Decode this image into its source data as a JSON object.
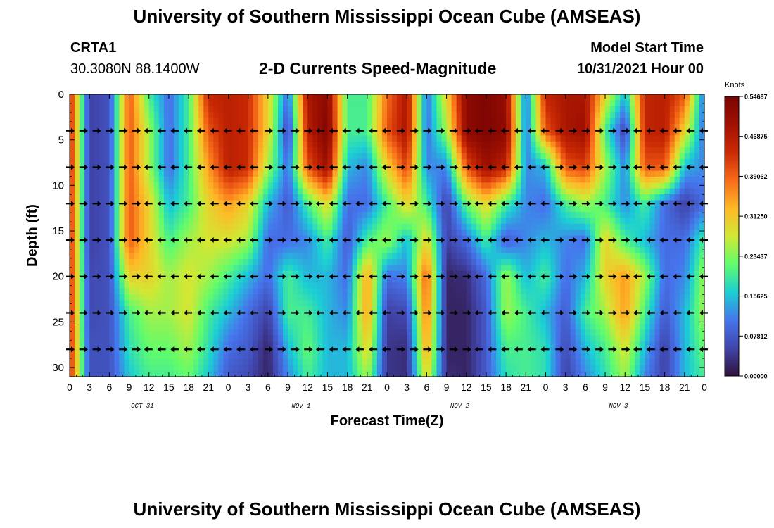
{
  "title": "University of Southern Mississippi Ocean Cube (AMSEAS)",
  "title_repeat": "University of Southern Mississippi Ocean Cube (AMSEAS)",
  "station": {
    "id": "CRTA1",
    "coords": "30.3080N  88.1400W"
  },
  "model": {
    "label": "Model Start Time",
    "value": "10/31/2021 Hour 00"
  },
  "chart_data": {
    "type": "heatmap",
    "title": "2-D Currents Speed-Magnitude",
    "xlabel": "Forecast Time(Z)",
    "ylabel": "Depth (ft)",
    "ylim": [
      0,
      31
    ],
    "x_hours_range": [
      0,
      96
    ],
    "x_tick_labels": [
      "0",
      "3",
      "6",
      "9",
      "12",
      "15",
      "18",
      "21",
      "0",
      "3",
      "6",
      "9",
      "12",
      "15",
      "18",
      "21",
      "0",
      "3",
      "6",
      "9",
      "12",
      "15",
      "18",
      "21",
      "0",
      "3",
      "6",
      "9",
      "12",
      "15",
      "18",
      "21",
      "0"
    ],
    "y_ticks": [
      0,
      5,
      10,
      15,
      20,
      25,
      30
    ],
    "date_labels": [
      {
        "label": "OCT 31",
        "hour": 11
      },
      {
        "label": "NOV 1",
        "hour": 35
      },
      {
        "label": "NOV 2",
        "hour": 59
      },
      {
        "label": "NOV 3",
        "hour": 83
      }
    ],
    "colorbar": {
      "title": "Knots",
      "min": 0.0,
      "max": 0.54687,
      "tick_labels": [
        "0.54687",
        "0.46875",
        "0.39062",
        "0.31250",
        "0.23437",
        "0.15625",
        "0.07812",
        "0.00000"
      ],
      "tick_values": [
        0.54687,
        0.46875,
        0.39062,
        0.3125,
        0.23437,
        0.15625,
        0.07812,
        0.0
      ]
    },
    "time_hours": [
      0,
      3,
      6,
      9,
      12,
      15,
      18,
      21,
      24,
      27,
      30,
      33,
      36,
      39,
      42,
      45,
      48,
      51,
      54,
      57,
      60,
      63,
      66,
      69,
      72,
      75,
      78,
      81,
      84,
      87,
      90,
      93,
      96
    ],
    "depth_levels_ft": [
      0,
      4,
      8,
      12,
      16,
      20,
      24,
      28,
      31
    ],
    "speed_knots": [
      [
        0.45,
        0.05,
        0.07,
        0.4,
        0.2,
        0.1,
        0.2,
        0.45,
        0.46,
        0.44,
        0.3,
        0.1,
        0.48,
        0.52,
        0.2,
        0.2,
        0.38,
        0.48,
        0.1,
        0.3,
        0.52,
        0.54,
        0.5,
        0.1,
        0.45,
        0.48,
        0.48,
        0.3,
        0.15,
        0.45,
        0.46,
        0.4,
        0.1
      ],
      [
        0.45,
        0.05,
        0.07,
        0.4,
        0.25,
        0.1,
        0.2,
        0.4,
        0.46,
        0.44,
        0.3,
        0.05,
        0.46,
        0.54,
        0.2,
        0.2,
        0.4,
        0.48,
        0.1,
        0.25,
        0.52,
        0.54,
        0.52,
        0.1,
        0.4,
        0.48,
        0.5,
        0.2,
        0.05,
        0.45,
        0.46,
        0.3,
        0.1
      ],
      [
        0.45,
        0.05,
        0.07,
        0.4,
        0.25,
        0.1,
        0.2,
        0.35,
        0.46,
        0.44,
        0.25,
        0.1,
        0.4,
        0.5,
        0.15,
        0.12,
        0.3,
        0.42,
        0.12,
        0.12,
        0.4,
        0.5,
        0.45,
        0.12,
        0.15,
        0.4,
        0.42,
        0.25,
        0.12,
        0.4,
        0.4,
        0.15,
        0.12
      ],
      [
        0.44,
        0.05,
        0.07,
        0.4,
        0.3,
        0.15,
        0.2,
        0.3,
        0.35,
        0.3,
        0.15,
        0.08,
        0.2,
        0.3,
        0.1,
        0.1,
        0.2,
        0.3,
        0.2,
        0.05,
        0.22,
        0.3,
        0.2,
        0.12,
        0.1,
        0.2,
        0.25,
        0.2,
        0.12,
        0.2,
        0.1,
        0.05,
        0.1
      ],
      [
        0.44,
        0.05,
        0.07,
        0.4,
        0.3,
        0.2,
        0.25,
        0.28,
        0.28,
        0.25,
        0.1,
        0.1,
        0.12,
        0.2,
        0.08,
        0.2,
        0.25,
        0.15,
        0.3,
        0.05,
        0.1,
        0.2,
        0.08,
        0.12,
        0.15,
        0.12,
        0.1,
        0.3,
        0.2,
        0.15,
        0.1,
        0.1,
        0.2
      ],
      [
        0.44,
        0.06,
        0.07,
        0.3,
        0.3,
        0.25,
        0.28,
        0.25,
        0.2,
        0.15,
        0.1,
        0.2,
        0.15,
        0.15,
        0.1,
        0.35,
        0.1,
        0.12,
        0.4,
        0.02,
        0.03,
        0.1,
        0.25,
        0.15,
        0.2,
        0.1,
        0.15,
        0.3,
        0.35,
        0.25,
        0.1,
        0.12,
        0.25
      ],
      [
        0.44,
        0.06,
        0.07,
        0.2,
        0.25,
        0.25,
        0.28,
        0.2,
        0.15,
        0.1,
        0.05,
        0.2,
        0.2,
        0.15,
        0.12,
        0.35,
        0.05,
        0.06,
        0.38,
        0.02,
        0.02,
        0.08,
        0.25,
        0.2,
        0.15,
        0.08,
        0.2,
        0.25,
        0.35,
        0.2,
        0.08,
        0.15,
        0.25
      ],
      [
        0.44,
        0.07,
        0.07,
        0.18,
        0.22,
        0.22,
        0.25,
        0.18,
        0.1,
        0.08,
        0.02,
        0.15,
        0.22,
        0.15,
        0.15,
        0.3,
        0.04,
        0.03,
        0.35,
        0.02,
        0.02,
        0.08,
        0.2,
        0.2,
        0.18,
        0.06,
        0.15,
        0.2,
        0.28,
        0.15,
        0.05,
        0.15,
        0.22
      ],
      [
        0.44,
        0.07,
        0.07,
        0.16,
        0.2,
        0.2,
        0.22,
        0.16,
        0.08,
        0.06,
        0.02,
        0.12,
        0.2,
        0.15,
        0.15,
        0.25,
        0.04,
        0.03,
        0.3,
        0.03,
        0.02,
        0.08,
        0.18,
        0.2,
        0.18,
        0.05,
        0.12,
        0.18,
        0.25,
        0.12,
        0.05,
        0.15,
        0.2
      ]
    ],
    "arrow_depths_ft": [
      4,
      8,
      12,
      16,
      20,
      24,
      28
    ],
    "arrow_hours_step": 2,
    "arrow_pattern_hours": [
      0,
      6,
      11,
      12,
      17,
      24,
      29,
      33,
      38,
      45,
      50,
      57,
      62,
      69,
      74,
      81,
      86,
      93,
      96
    ],
    "arrow_pattern_dirs": [
      "E",
      "E",
      "E",
      "W",
      "W",
      "W",
      "E",
      "E",
      "W",
      "W",
      "E",
      "E",
      "W",
      "W",
      "E",
      "E",
      "W",
      "W",
      "W"
    ]
  }
}
